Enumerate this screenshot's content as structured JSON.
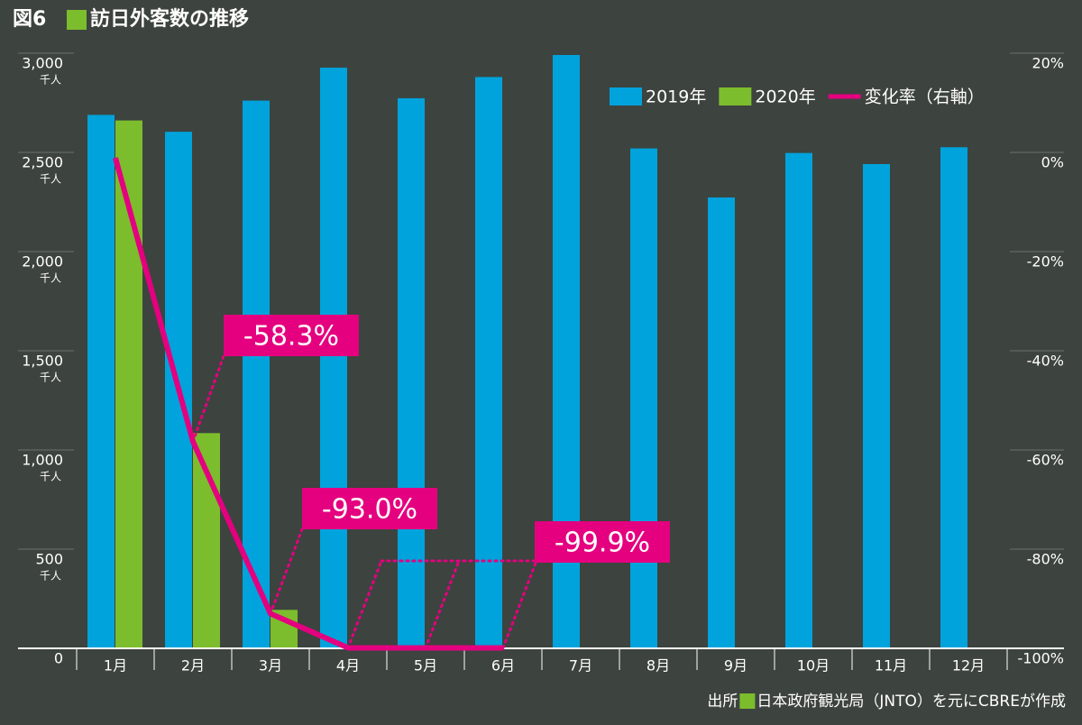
{
  "chart_data": {
    "type": "bar_line",
    "figure_label": "図6",
    "title": "訪日外客数の推移",
    "source_label": "出所",
    "source": "日本政府観光局（JNTO）を元にCBREが作成",
    "categories": [
      "1月",
      "2月",
      "3月",
      "4月",
      "5月",
      "6月",
      "7月",
      "8月",
      "9月",
      "10月",
      "11月",
      "12月"
    ],
    "series": [
      {
        "name": "2019年",
        "color": "#00a3dc",
        "values": [
          2689,
          2604,
          2761,
          2927,
          2773,
          2880,
          2991,
          2520,
          2273,
          2497,
          2441,
          2526
        ]
      },
      {
        "name": "2020年",
        "color": "#7cbd2d",
        "values": [
          2661,
          1085,
          194,
          3,
          2,
          3,
          null,
          null,
          null,
          null,
          null,
          null
        ]
      },
      {
        "name": "変化率（右軸）",
        "color": "#e4007f",
        "axis": "y2",
        "values": [
          -1.1,
          -58.3,
          -93.0,
          -99.9,
          -99.9,
          -99.9,
          null,
          null,
          null,
          null,
          null,
          null
        ],
        "value_labels": [
          null,
          "-58.3%",
          "-93.0%",
          "-99.9%",
          null,
          null,
          null,
          null,
          null,
          null,
          null,
          null
        ]
      }
    ],
    "y_unit": "千人",
    "ylim": [
      0,
      3000
    ],
    "yticks": [
      0,
      500,
      {
        "value": 1000,
        "label": "1,000"
      },
      {
        "value": 1500,
        "label": "1,500"
      },
      {
        "value": 2000,
        "label": "2,000"
      },
      {
        "value": 2500,
        "label": "2,500"
      },
      {
        "value": 3000,
        "label": "3,000"
      }
    ],
    "y2lim": [
      -100,
      20
    ],
    "y2ticks": [
      {
        "value": -100,
        "label": "-100%"
      },
      {
        "value": -80,
        "label": "-80%"
      },
      {
        "value": -60,
        "label": "-60%"
      },
      {
        "value": -40,
        "label": "-40%"
      },
      {
        "value": -20,
        "label": "-20%"
      },
      {
        "value": 0,
        "label": "0%"
      },
      {
        "value": 20,
        "label": "20%"
      }
    ],
    "legend": "top-right"
  }
}
